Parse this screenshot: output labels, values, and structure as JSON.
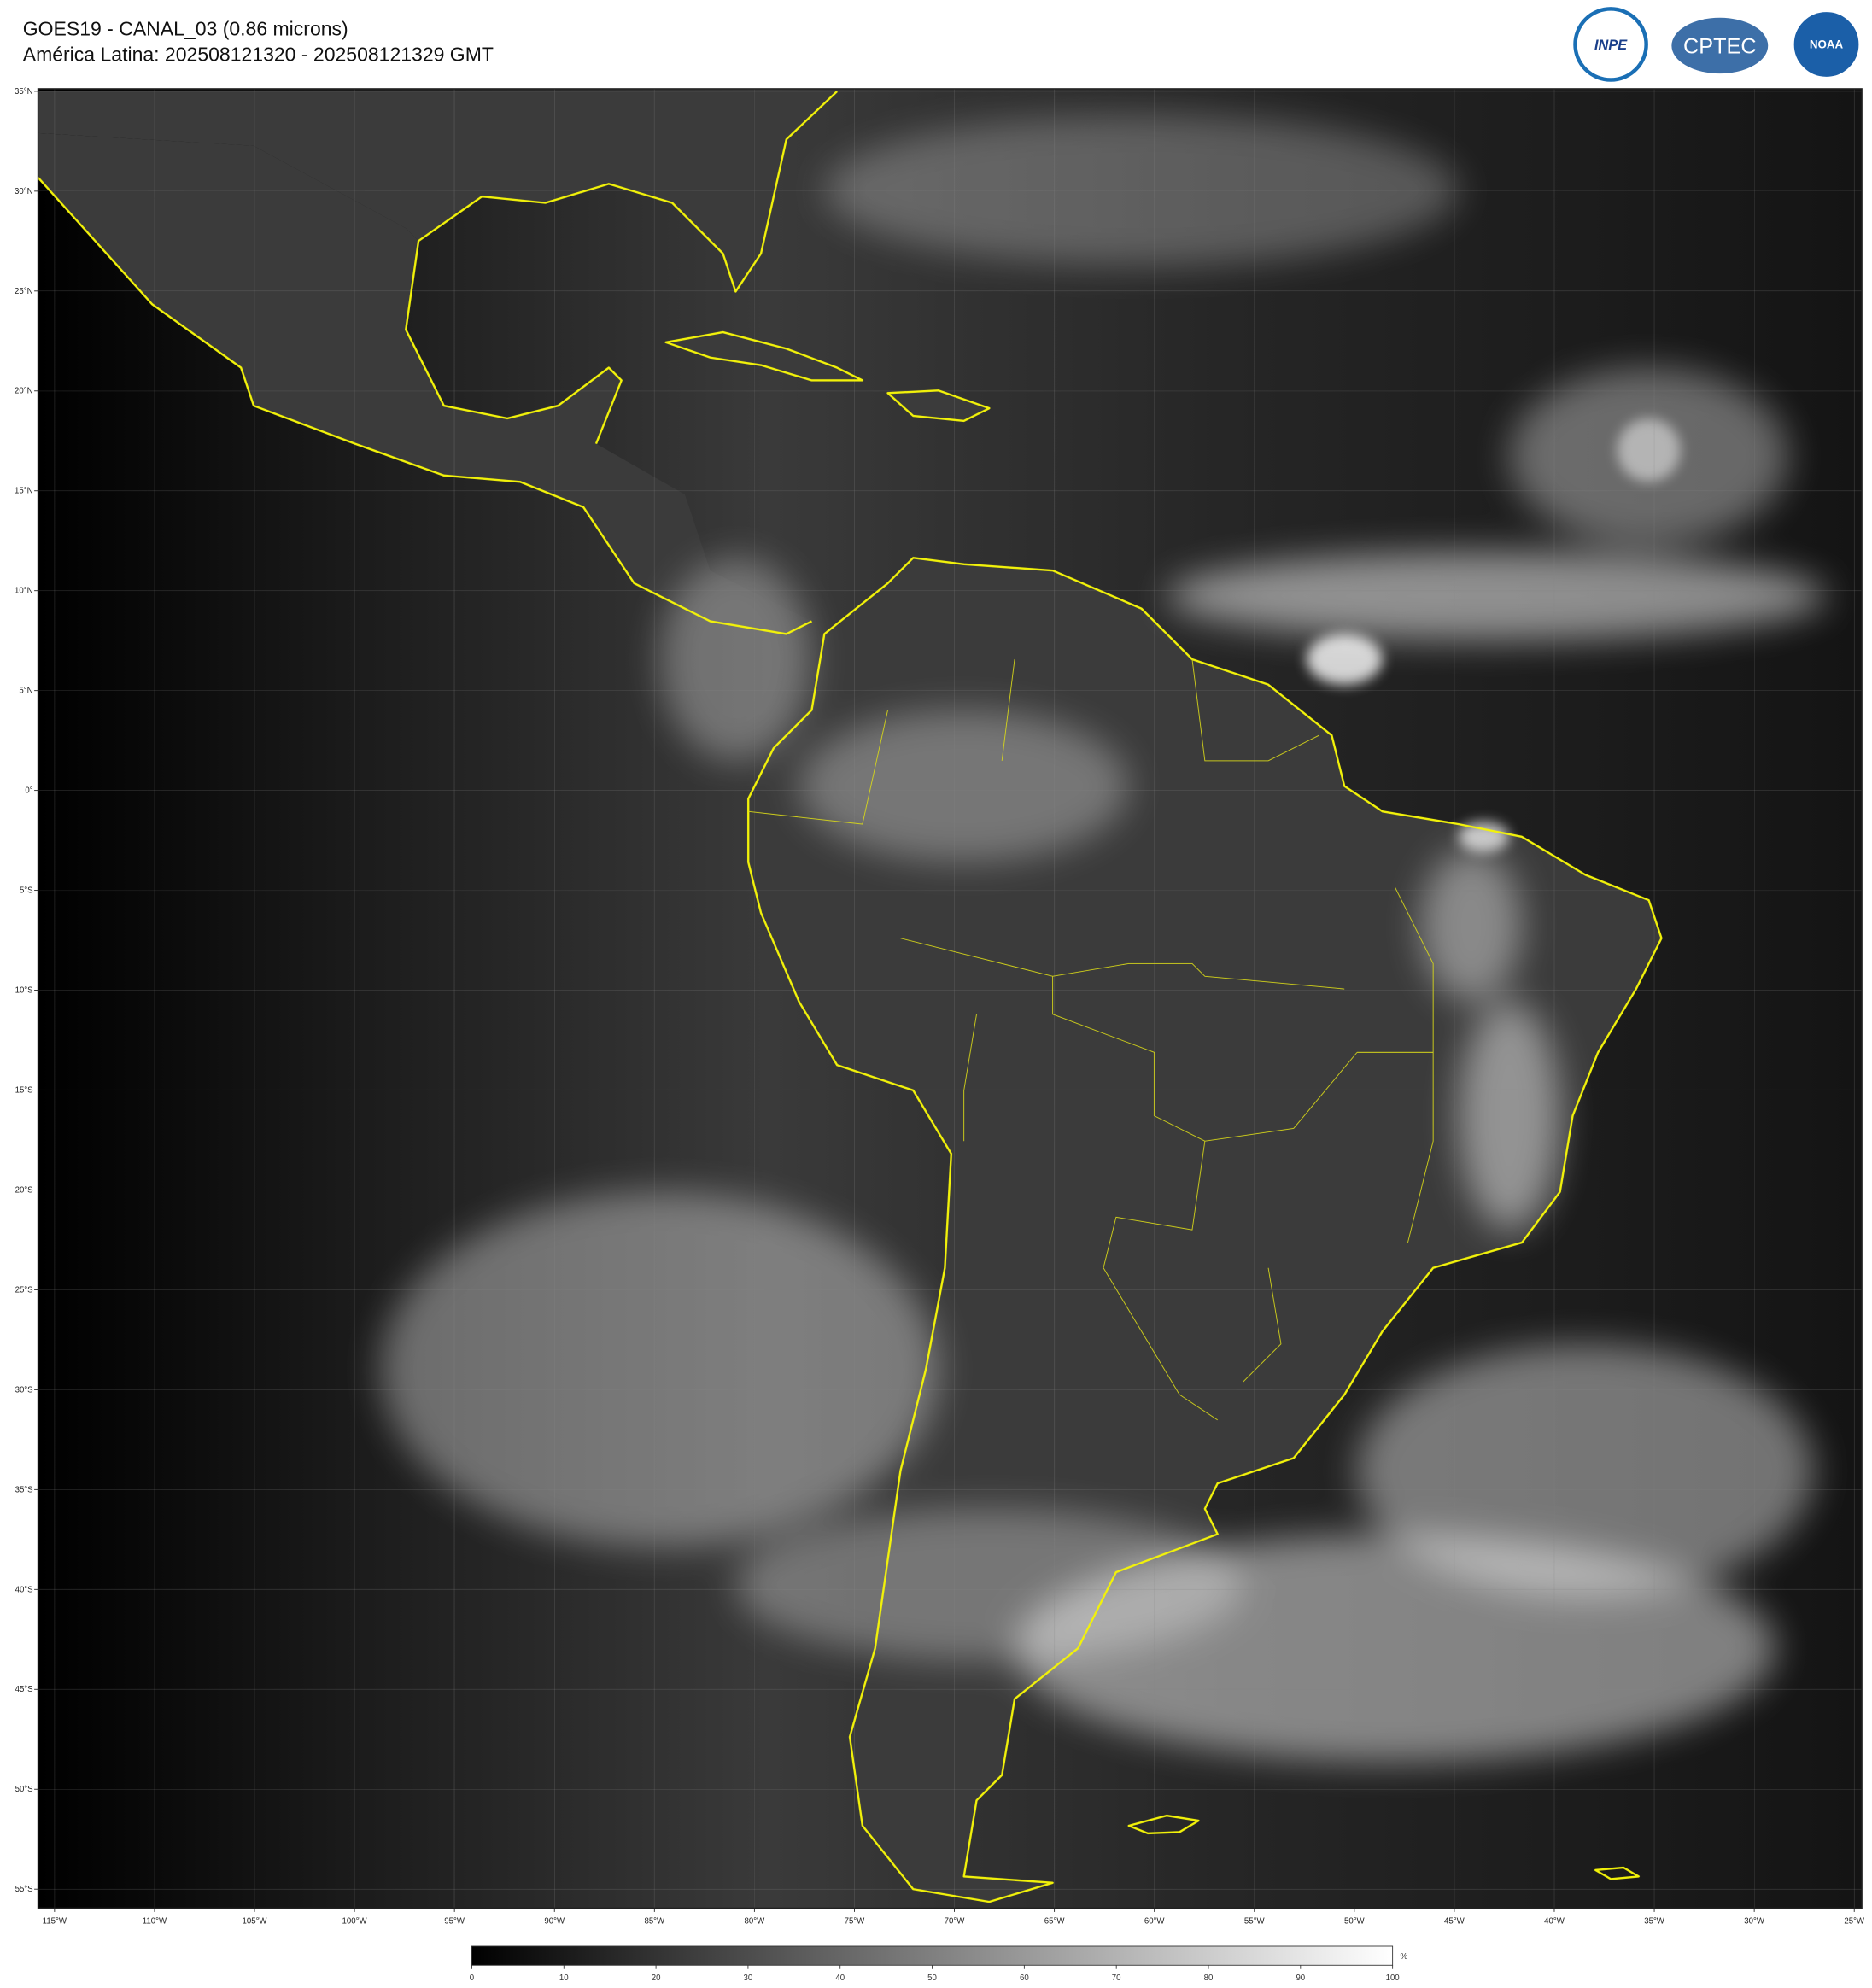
{
  "header": {
    "title": "GOES19 - CANAL_03 (0.86 microns)",
    "subtitle": "América Latina: 202508121320 - 202508121329 GMT",
    "logos": [
      "INPE",
      "CPTEC",
      "NOAA"
    ]
  },
  "map": {
    "lat_labels": [
      "35°N",
      "30°N",
      "25°N",
      "20°N",
      "15°N",
      "10°N",
      "5°N",
      "0°",
      "5°S",
      "10°S",
      "15°S",
      "20°S",
      "25°S",
      "30°S",
      "35°S",
      "40°S",
      "45°S",
      "50°S",
      "55°S"
    ],
    "lon_labels": [
      "115°W",
      "110°W",
      "105°W",
      "100°W",
      "95°W",
      "90°W",
      "85°W",
      "80°W",
      "75°W",
      "70°W",
      "65°W",
      "60°W",
      "55°W",
      "50°W",
      "45°W",
      "40°W",
      "35°W",
      "30°W",
      "25°W"
    ]
  },
  "colorbar": {
    "range": [
      0,
      100
    ],
    "ticks": [
      0,
      10,
      20,
      30,
      40,
      50,
      60,
      70,
      80,
      90,
      100
    ],
    "unit": "%"
  }
}
